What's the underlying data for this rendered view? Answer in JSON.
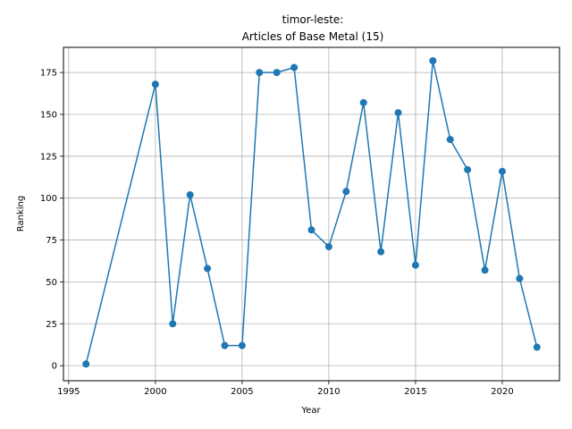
{
  "chart_data": {
    "type": "line",
    "title_line1": "timor-leste:",
    "title_line2": "Articles of Base Metal (15)",
    "xlabel": "Year",
    "ylabel": "Ranking",
    "xlim": [
      1994.7,
      2023.3
    ],
    "ylim": [
      -9,
      190
    ],
    "xticks": [
      1995,
      2000,
      2005,
      2010,
      2015,
      2020
    ],
    "yticks": [
      0,
      25,
      50,
      75,
      100,
      125,
      150,
      175
    ],
    "grid": true,
    "line_color": "#1f77b4",
    "series": [
      {
        "x": [
          1996,
          2000,
          2001,
          2002,
          2003,
          2004,
          2005,
          2006,
          2007,
          2008,
          2009,
          2010,
          2011,
          2012,
          2013,
          2014,
          2015,
          2016,
          2017,
          2018,
          2019,
          2020,
          2021,
          2022
        ],
        "values": [
          1,
          168,
          25,
          102,
          58,
          12,
          12,
          175,
          175,
          178,
          81,
          71,
          104,
          157,
          68,
          151,
          60,
          182,
          135,
          117,
          57,
          116,
          52,
          11
        ]
      }
    ]
  }
}
